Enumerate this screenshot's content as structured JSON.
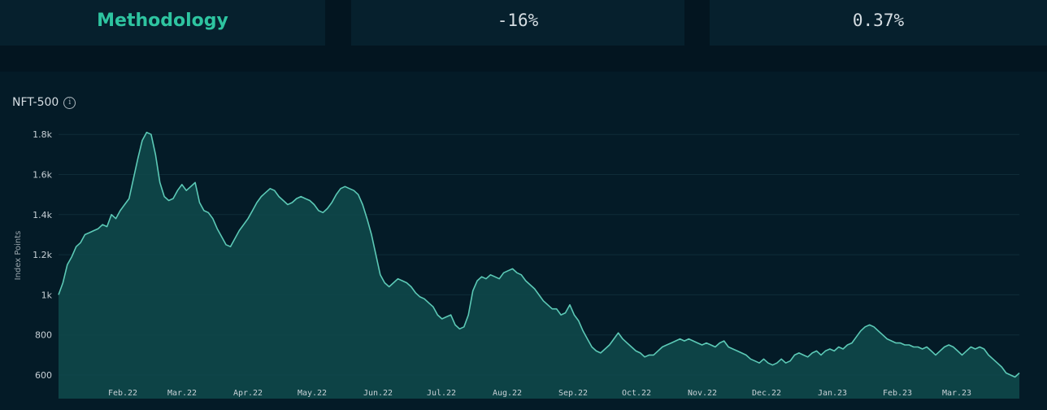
{
  "cards": {
    "methodology_link": "Methodology",
    "stat_1_value": "-16%",
    "stat_2_value": "0.37%"
  },
  "colors": {
    "accent": "#2ec4a0",
    "line": "#5cc9b6",
    "area": "#0f4a4c",
    "background": "#031520"
  },
  "chart_data": {
    "type": "area",
    "title": "NFT-500",
    "xlabel": "",
    "ylabel": "Index Points",
    "ylim": [
      560,
      1870
    ],
    "yticks": [
      600,
      800,
      1000,
      1200,
      1400,
      1600,
      1800
    ],
    "ytick_labels": [
      "600",
      "800",
      "1k",
      "1.2k",
      "1.4k",
      "1.6k",
      "1.8k"
    ],
    "xticks": [
      "Feb.22",
      "Mar.22",
      "Apr.22",
      "May.22",
      "Jun.22",
      "Jul.22",
      "Aug.22",
      "Sep.22",
      "Oct.22",
      "Nov.22",
      "Dec.22",
      "Jan.23",
      "Feb.23",
      "Mar.23"
    ],
    "grid": true,
    "series": [
      {
        "values": [
          1000,
          1060,
          1150,
          1190,
          1240,
          1260,
          1300,
          1310,
          1320,
          1330,
          1350,
          1340,
          1400,
          1380,
          1420,
          1450,
          1480,
          1580,
          1680,
          1770,
          1810,
          1800,
          1700,
          1560,
          1490,
          1470,
          1480,
          1520,
          1550,
          1520,
          1540,
          1560,
          1460,
          1420,
          1410,
          1380,
          1330,
          1290,
          1250,
          1240,
          1280,
          1320,
          1350,
          1380,
          1420,
          1460,
          1490,
          1510,
          1530,
          1520,
          1490,
          1470,
          1450,
          1460,
          1480,
          1490,
          1480,
          1470,
          1450,
          1420,
          1410,
          1430,
          1460,
          1500,
          1530,
          1540,
          1530,
          1520,
          1500,
          1450,
          1380,
          1300,
          1200,
          1100,
          1060,
          1040,
          1060,
          1080,
          1070,
          1060,
          1040,
          1010,
          990,
          980,
          960,
          940,
          900,
          880,
          890,
          900,
          850,
          830,
          840,
          900,
          1020,
          1070,
          1090,
          1080,
          1100,
          1090,
          1080,
          1110,
          1120,
          1130,
          1110,
          1100,
          1070,
          1050,
          1030,
          1000,
          970,
          950,
          930,
          930,
          900,
          910,
          950,
          900,
          870,
          820,
          780,
          740,
          720,
          710,
          730,
          750,
          780,
          810,
          780,
          760,
          740,
          720,
          710,
          690,
          700,
          700,
          720,
          740,
          750,
          760,
          770,
          780,
          770,
          780,
          770,
          760,
          750,
          760,
          750,
          740,
          760,
          770,
          740,
          730,
          720,
          710,
          700,
          680,
          670,
          660,
          680,
          660,
          650,
          660,
          680,
          660,
          670,
          700,
          710,
          700,
          690,
          710,
          720,
          700,
          720,
          730,
          720,
          740,
          730,
          750,
          760,
          790,
          820,
          840,
          850,
          840,
          820,
          800,
          780,
          770,
          760,
          760,
          750,
          750,
          740,
          740,
          730,
          740,
          720,
          700,
          720,
          740,
          750,
          740,
          720,
          700,
          720,
          740,
          730,
          740,
          730,
          700,
          680,
          660,
          640,
          610,
          600,
          590,
          610
        ]
      }
    ]
  }
}
